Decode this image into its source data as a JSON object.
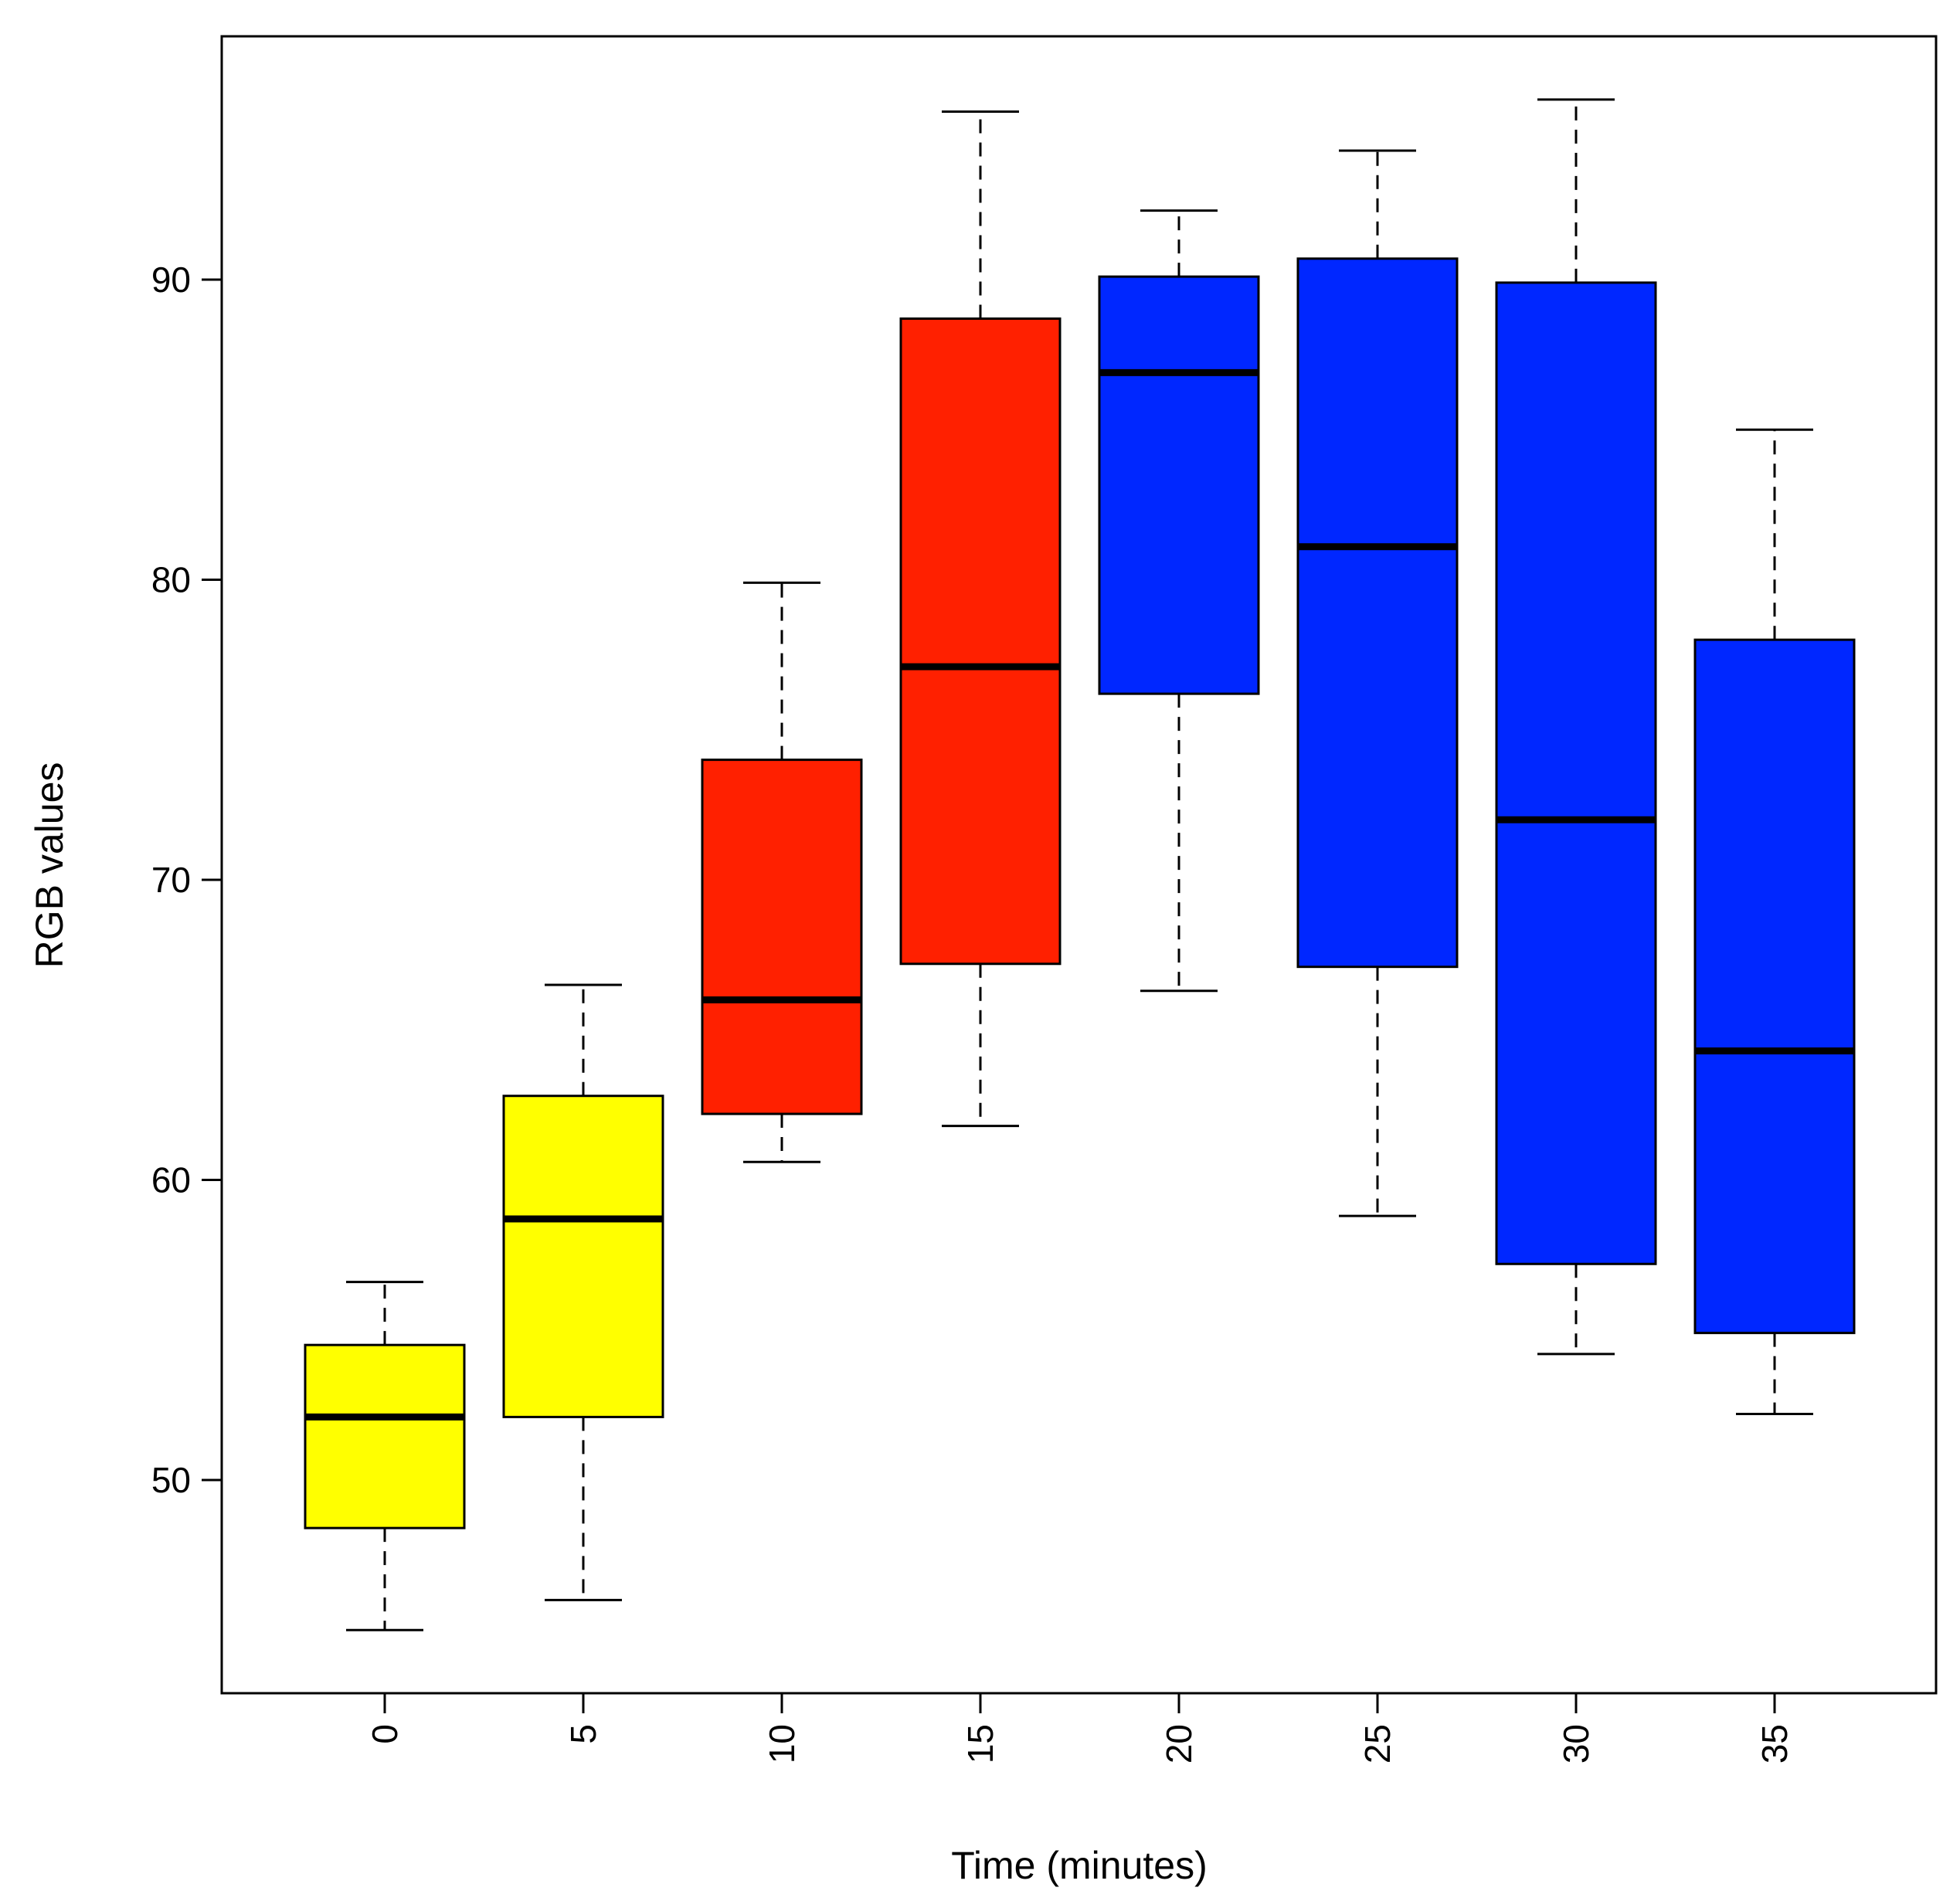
{
  "chart_data": {
    "type": "boxplot",
    "title": "",
    "xlabel": "Time (minutes)",
    "ylabel": "RGB values",
    "categories": [
      "0",
      "5",
      "10",
      "15",
      "20",
      "25",
      "30",
      "35"
    ],
    "yticks": [
      "50",
      "60",
      "70",
      "80",
      "90"
    ],
    "ylim": [
      43,
      97
    ],
    "grid": false,
    "boxes": [
      {
        "category": "0",
        "whisker_low": 45.0,
        "q1": 48.4,
        "median": 52.1,
        "q3": 54.5,
        "whisker_high": 56.6,
        "color": "#ffff00"
      },
      {
        "category": "5",
        "whisker_low": 46.0,
        "q1": 52.1,
        "median": 58.7,
        "q3": 62.8,
        "whisker_high": 66.5,
        "color": "#ffff00"
      },
      {
        "category": "10",
        "whisker_low": 60.6,
        "q1": 62.2,
        "median": 66.0,
        "q3": 74.0,
        "whisker_high": 79.9,
        "color": "#ff2000"
      },
      {
        "category": "15",
        "whisker_low": 61.8,
        "q1": 67.2,
        "median": 77.1,
        "q3": 88.7,
        "whisker_high": 95.6,
        "color": "#ff2000"
      },
      {
        "category": "20",
        "whisker_low": 66.3,
        "q1": 76.2,
        "median": 86.9,
        "q3": 90.1,
        "whisker_high": 92.3,
        "color": "#0027ff"
      },
      {
        "category": "25",
        "whisker_low": 58.8,
        "q1": 67.1,
        "median": 81.1,
        "q3": 90.7,
        "whisker_high": 94.3,
        "color": "#0027ff"
      },
      {
        "category": "30",
        "whisker_low": 54.2,
        "q1": 57.2,
        "median": 72.0,
        "q3": 89.9,
        "whisker_high": 96.0,
        "color": "#0027ff"
      },
      {
        "category": "35",
        "whisker_low": 52.2,
        "q1": 54.9,
        "median": 64.3,
        "q3": 78.0,
        "whisker_high": 85.0,
        "color": "#0027ff"
      }
    ]
  }
}
